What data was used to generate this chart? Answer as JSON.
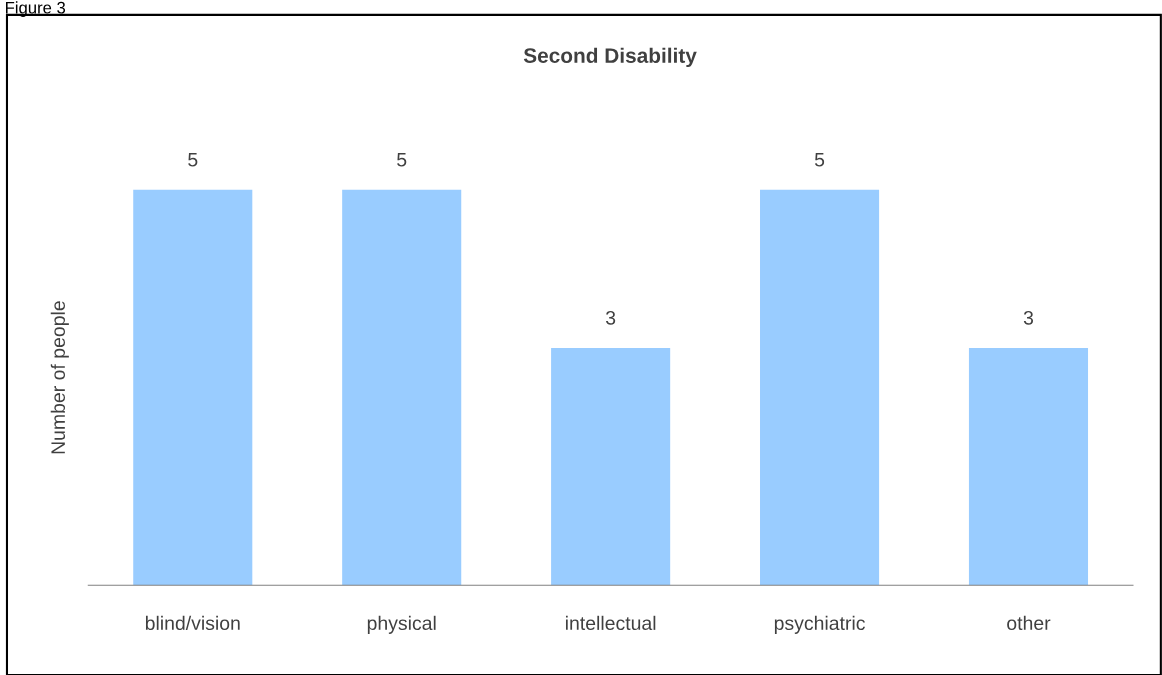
{
  "chart_data": {
    "type": "bar",
    "title": "Second Disability",
    "ylabel": "Number of people",
    "categories": [
      "blind/vision",
      "physical",
      "intellectual",
      "psychiatric",
      "other"
    ],
    "values": [
      5,
      5,
      3,
      5,
      3
    ],
    "color": "#99ccff",
    "data_labels": true,
    "grid": false,
    "legend": false,
    "tick_labels": "x",
    "annotations": [
      "Figure 3"
    ]
  }
}
